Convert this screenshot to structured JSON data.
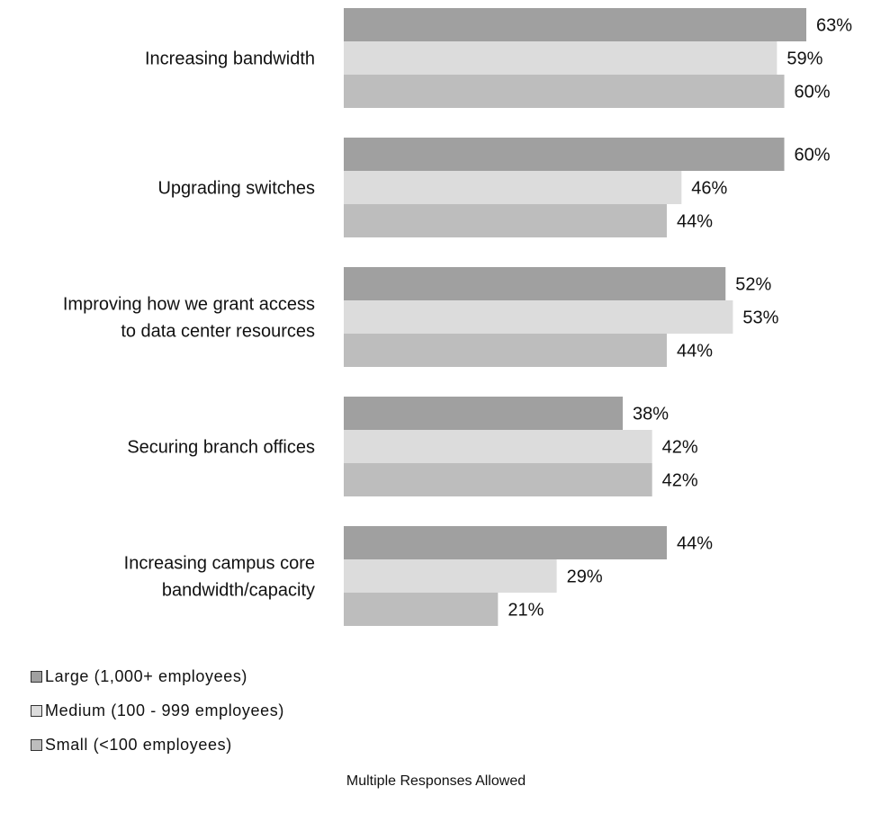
{
  "colors": {
    "large": "#a0a0a0",
    "medium": "#dcdcdc",
    "small": "#bdbdbd"
  },
  "legend": [
    {
      "key": "large",
      "label": "Large (1,000+ employees)"
    },
    {
      "key": "medium",
      "label": "Medium (100 - 999 employees)"
    },
    {
      "key": "small",
      "label": "Small (<100 employees)"
    }
  ],
  "footnote": "Multiple Responses Allowed",
  "chart_data": {
    "type": "bar",
    "orientation": "horizontal",
    "categories": [
      [
        "Increasing bandwidth"
      ],
      [
        "Upgrading switches"
      ],
      [
        "Improving how we grant access",
        "to data center resources"
      ],
      [
        "Securing branch offices"
      ],
      [
        "Increasing campus core",
        "bandwidth/capacity"
      ]
    ],
    "series": [
      {
        "name": "Large (1,000+ employees)",
        "key": "large",
        "values": [
          63,
          60,
          52,
          38,
          44
        ],
        "labels": [
          "63%",
          "60%",
          "52%",
          "38%",
          "44%"
        ]
      },
      {
        "name": "Medium (100 - 999 employees)",
        "key": "medium",
        "values": [
          59,
          46,
          53,
          42,
          29
        ],
        "labels": [
          "59%",
          "46%",
          "53%",
          "42%",
          "29%"
        ]
      },
      {
        "name": "Small (<100 employees)",
        "key": "small",
        "values": [
          60,
          44,
          44,
          42,
          21
        ],
        "labels": [
          "60%",
          "44%",
          "44%",
          "42%",
          "21%"
        ]
      }
    ],
    "xlim": [
      0,
      63
    ],
    "grid": false,
    "legend_position": "bottom-left"
  }
}
